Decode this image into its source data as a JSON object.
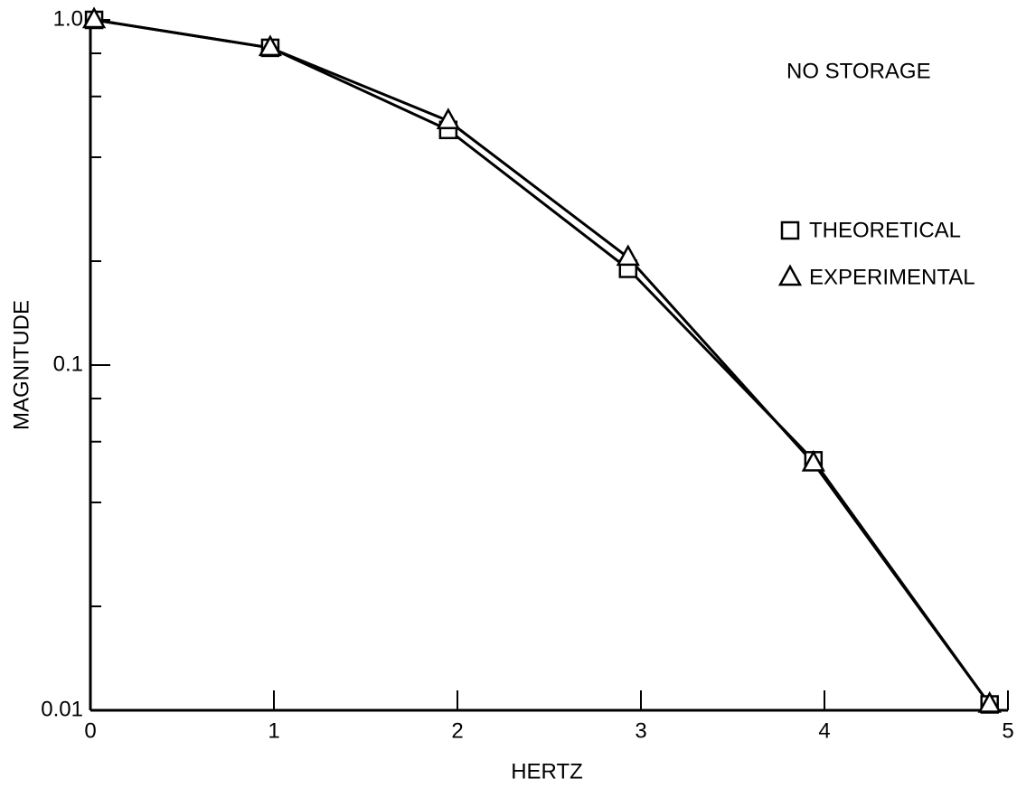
{
  "chart_data": {
    "type": "line",
    "xlabel": "HERTZ",
    "ylabel": "MAGNITUDE",
    "annotation": "NO STORAGE",
    "xlim": [
      0,
      5
    ],
    "xticks": [
      0,
      1,
      2,
      3,
      4,
      5
    ],
    "ylim": [
      0.01,
      1.0
    ],
    "yscale": "log",
    "yticks": [
      0.01,
      0.1,
      {
        "value": 1.0,
        "label": "1.0"
      }
    ],
    "minor_yticks": [
      0.02,
      0.04,
      0.06,
      0.08,
      0.2,
      0.4,
      0.6,
      0.8
    ],
    "legend": "right",
    "series": [
      {
        "name": "THEORETICAL",
        "marker": "square",
        "color": "#000000",
        "x": [
          0.02,
          0.98,
          1.95,
          2.93,
          3.94,
          4.9
        ],
        "values": [
          1.0,
          0.83,
          0.48,
          0.19,
          0.053,
          0.0104
        ]
      },
      {
        "name": "EXPERIMENTAL",
        "marker": "triangle",
        "color": "#000000",
        "x": [
          0.02,
          0.98,
          1.95,
          2.93,
          3.94,
          4.9
        ],
        "values": [
          1.0,
          0.83,
          0.51,
          0.205,
          0.052,
          0.0104
        ]
      }
    ]
  }
}
